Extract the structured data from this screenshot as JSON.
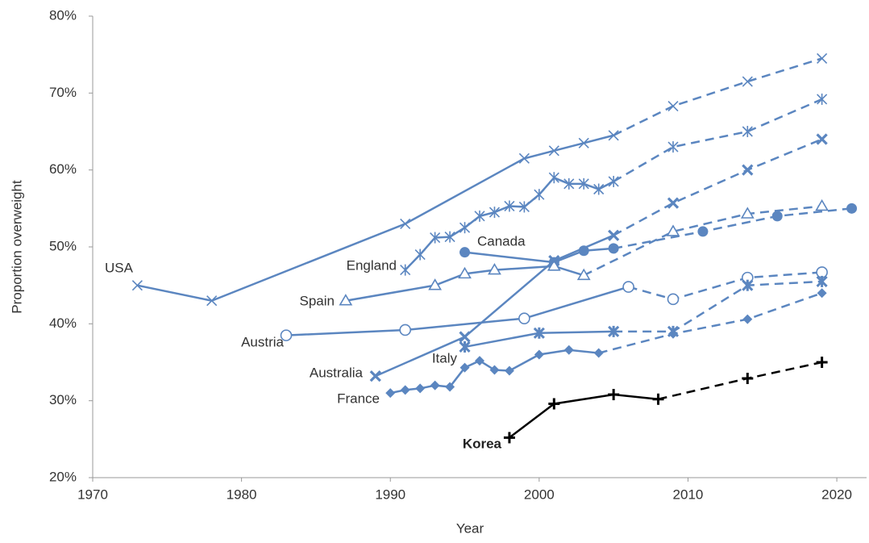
{
  "chart_data": {
    "type": "line",
    "x_label": "Year",
    "y_label": "Proportion overweight",
    "xlim": [
      1970,
      2022
    ],
    "xticks": [
      1970,
      1980,
      1990,
      2000,
      2010,
      2020
    ],
    "ylim": [
      20,
      80
    ],
    "yticks": [
      {
        "value": 20,
        "label": "20%"
      },
      {
        "value": 30,
        "label": "30%"
      },
      {
        "value": 40,
        "label": "40%"
      },
      {
        "value": 50,
        "label": "50%"
      },
      {
        "value": 60,
        "label": "60%"
      },
      {
        "value": 70,
        "label": "70%"
      },
      {
        "value": 80,
        "label": "80%"
      }
    ],
    "grid": false,
    "series": [
      {
        "name": "USA",
        "color": "#5b86c0",
        "marker": "x",
        "x": [
          1973,
          1978,
          1991,
          1999,
          2001,
          2003,
          2005
        ],
        "values": [
          45,
          43,
          53,
          61.5,
          62.5,
          63.5,
          64.5
        ],
        "projection_x": [
          2009,
          2014,
          2019
        ],
        "projection_values": [
          68.3,
          71.5,
          74.5
        ]
      },
      {
        "name": "England",
        "color": "#5b86c0",
        "marker": "asterisk",
        "x": [
          1991,
          1992,
          1993,
          1994,
          1995,
          1996,
          1997,
          1998,
          1999,
          2000,
          2001,
          2002,
          2003,
          2004,
          2005
        ],
        "values": [
          47,
          49,
          51.2,
          51.3,
          52.5,
          54,
          54.5,
          55.3,
          55.2,
          56.8,
          59,
          58.2,
          58.2,
          57.5,
          58.5
        ],
        "projection_x": [
          2009,
          2014,
          2019
        ],
        "projection_values": [
          63,
          65,
          69.2
        ]
      },
      {
        "name": "Canada",
        "color": "#5b86c0",
        "marker": "circle",
        "x": [
          1995,
          2001,
          2003,
          2005
        ],
        "values": [
          49.3,
          48,
          49.5,
          49.8
        ],
        "projection_x": [
          2011,
          2016,
          2021
        ],
        "projection_values": [
          52,
          54,
          55
        ]
      },
      {
        "name": "Spain",
        "color": "#5b86c0",
        "marker": "triangle",
        "x": [
          1987,
          1993,
          1995,
          1997,
          2001,
          2003
        ],
        "values": [
          43,
          45,
          46.5,
          47,
          47.5,
          46.3
        ],
        "projection_x": [
          2009,
          2014,
          2019
        ],
        "projection_values": [
          52,
          54.3,
          55.3
        ]
      },
      {
        "name": "Austria",
        "color": "#5b86c0",
        "marker": "open-circle",
        "x": [
          1983,
          1991,
          1999,
          2006
        ],
        "values": [
          38.5,
          39.2,
          40.7,
          44.8
        ],
        "projection_x": [
          2009,
          2014,
          2019
        ],
        "projection_values": [
          43.2,
          46,
          46.7
        ]
      },
      {
        "name": "Italy",
        "color": "#5b86c0",
        "marker": "asterisk-bold",
        "x": [
          1995,
          2000,
          2005
        ],
        "values": [
          37,
          38.8,
          39
        ],
        "projection_x": [
          2009,
          2014,
          2019
        ],
        "projection_values": [
          39,
          45,
          45.5
        ]
      },
      {
        "name": "Australia",
        "color": "#5b86c0",
        "marker": "x-bold",
        "x": [
          1989,
          1995,
          2001,
          2005
        ],
        "values": [
          33.2,
          38.3,
          48.2,
          51.5
        ],
        "projection_x": [
          2009,
          2014,
          2019
        ],
        "projection_values": [
          55.7,
          60,
          64
        ]
      },
      {
        "name": "France",
        "color": "#5b86c0",
        "marker": "diamond",
        "x": [
          1990,
          1991,
          1992,
          1993,
          1994,
          1995,
          1996,
          1997,
          1998,
          2000,
          2002,
          2004
        ],
        "values": [
          31,
          31.4,
          31.6,
          32,
          31.8,
          34.3,
          35.2,
          34,
          33.9,
          36,
          36.6,
          36.2
        ],
        "projection_x": [
          2009,
          2014,
          2019
        ],
        "projection_values": [
          38.7,
          40.6,
          44
        ]
      },
      {
        "name": "Korea",
        "color": "#000000",
        "marker": "plus",
        "x": [
          1998,
          2001,
          2005,
          2008
        ],
        "values": [
          25.2,
          29.6,
          30.8,
          30.2
        ],
        "projection_x": [
          2014,
          2019
        ],
        "projection_values": [
          32.9,
          35
        ]
      }
    ]
  }
}
